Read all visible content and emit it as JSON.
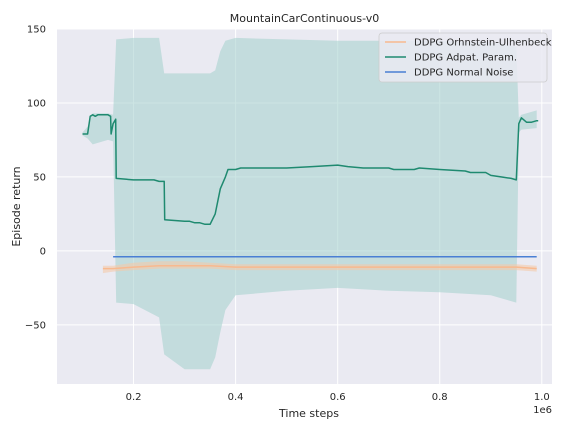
{
  "chart_data": {
    "type": "line",
    "title": "MountainCarContinuous-v0",
    "xlabel": "Time steps",
    "ylabel": "Episode return",
    "x_offset_label": "1e6",
    "xlim": [
      0.05,
      1.02
    ],
    "ylim": [
      -90,
      150
    ],
    "x_ticks": [
      0.2,
      0.4,
      0.6,
      0.8,
      1.0
    ],
    "x_tick_labels": [
      "0.2",
      "0.4",
      "0.6",
      "0.8",
      "1.0"
    ],
    "y_ticks": [
      150,
      100,
      50,
      0,
      -50
    ],
    "y_tick_labels": [
      "150",
      "100",
      "50",
      "0",
      "−50"
    ],
    "grid": true,
    "legend_position": "top-right",
    "colors": {
      "background": "#eaeaf2",
      "grid": "#ffffff",
      "ou_line": "#f8b98f",
      "ou_band": "#f4c9aa",
      "adapt_line": "#1f8a70",
      "adapt_band": "#a3cfcc",
      "normal_line": "#4a7fd4"
    },
    "series": [
      {
        "name": "DDPG Orhnstein-Ulhenbeck",
        "line": [
          [
            0.14,
            -12
          ],
          [
            0.16,
            -12
          ],
          [
            0.2,
            -11
          ],
          [
            0.25,
            -10
          ],
          [
            0.3,
            -10
          ],
          [
            0.35,
            -10
          ],
          [
            0.4,
            -11
          ],
          [
            0.5,
            -11
          ],
          [
            0.6,
            -11
          ],
          [
            0.7,
            -11
          ],
          [
            0.8,
            -11
          ],
          [
            0.9,
            -11
          ],
          [
            0.95,
            -11
          ],
          [
            0.99,
            -12
          ]
        ],
        "band_upper": [
          [
            0.14,
            -10
          ],
          [
            0.16,
            -10
          ],
          [
            0.2,
            -8
          ],
          [
            0.25,
            -7
          ],
          [
            0.3,
            -7
          ],
          [
            0.35,
            -8
          ],
          [
            0.4,
            -9
          ],
          [
            0.5,
            -9
          ],
          [
            0.6,
            -9
          ],
          [
            0.7,
            -9
          ],
          [
            0.8,
            -9
          ],
          [
            0.9,
            -9
          ],
          [
            0.95,
            -9
          ],
          [
            0.99,
            -10
          ]
        ],
        "band_lower": [
          [
            0.14,
            -15
          ],
          [
            0.16,
            -14
          ],
          [
            0.2,
            -13
          ],
          [
            0.25,
            -12
          ],
          [
            0.3,
            -12
          ],
          [
            0.35,
            -12
          ],
          [
            0.4,
            -13
          ],
          [
            0.5,
            -13
          ],
          [
            0.6,
            -13
          ],
          [
            0.7,
            -13
          ],
          [
            0.8,
            -13
          ],
          [
            0.9,
            -13
          ],
          [
            0.95,
            -13
          ],
          [
            0.99,
            -14
          ]
        ]
      },
      {
        "name": "DDPG Adpat. Param.",
        "line": [
          [
            0.1,
            79
          ],
          [
            0.11,
            79
          ],
          [
            0.115,
            91
          ],
          [
            0.12,
            92
          ],
          [
            0.125,
            91
          ],
          [
            0.13,
            92
          ],
          [
            0.15,
            92
          ],
          [
            0.155,
            91
          ],
          [
            0.156,
            79
          ],
          [
            0.16,
            86
          ],
          [
            0.165,
            89
          ],
          [
            0.166,
            49
          ],
          [
            0.2,
            48
          ],
          [
            0.21,
            48
          ],
          [
            0.24,
            48
          ],
          [
            0.25,
            47
          ],
          [
            0.26,
            47
          ],
          [
            0.261,
            21
          ],
          [
            0.3,
            20
          ],
          [
            0.31,
            20
          ],
          [
            0.32,
            19
          ],
          [
            0.33,
            19
          ],
          [
            0.34,
            18
          ],
          [
            0.35,
            18
          ],
          [
            0.36,
            25
          ],
          [
            0.37,
            42
          ],
          [
            0.38,
            50
          ],
          [
            0.385,
            55
          ],
          [
            0.4,
            55
          ],
          [
            0.41,
            56
          ],
          [
            0.5,
            56
          ],
          [
            0.55,
            57
          ],
          [
            0.6,
            58
          ],
          [
            0.62,
            57
          ],
          [
            0.65,
            56
          ],
          [
            0.7,
            56
          ],
          [
            0.71,
            55
          ],
          [
            0.75,
            55
          ],
          [
            0.76,
            56
          ],
          [
            0.8,
            55
          ],
          [
            0.85,
            54
          ],
          [
            0.86,
            53
          ],
          [
            0.89,
            53
          ],
          [
            0.9,
            51
          ],
          [
            0.92,
            50
          ],
          [
            0.94,
            49
          ],
          [
            0.95,
            48
          ],
          [
            0.955,
            86
          ],
          [
            0.96,
            90
          ],
          [
            0.97,
            87
          ],
          [
            0.98,
            87
          ],
          [
            0.99,
            88
          ],
          [
            0.993,
            88
          ]
        ],
        "band_upper": [
          [
            0.1,
            80
          ],
          [
            0.11,
            84
          ],
          [
            0.12,
            93
          ],
          [
            0.15,
            93
          ],
          [
            0.16,
            92
          ],
          [
            0.166,
            143
          ],
          [
            0.2,
            144
          ],
          [
            0.25,
            144
          ],
          [
            0.26,
            120
          ],
          [
            0.3,
            120
          ],
          [
            0.35,
            120
          ],
          [
            0.36,
            122
          ],
          [
            0.37,
            135
          ],
          [
            0.38,
            142
          ],
          [
            0.4,
            144
          ],
          [
            0.5,
            143
          ],
          [
            0.6,
            142
          ],
          [
            0.7,
            142
          ],
          [
            0.8,
            142
          ],
          [
            0.9,
            141
          ],
          [
            0.95,
            138
          ],
          [
            0.955,
            90
          ],
          [
            0.96,
            92
          ],
          [
            0.99,
            95
          ]
        ],
        "band_lower": [
          [
            0.1,
            78
          ],
          [
            0.11,
            76
          ],
          [
            0.12,
            72
          ],
          [
            0.15,
            75
          ],
          [
            0.16,
            74
          ],
          [
            0.166,
            -35
          ],
          [
            0.2,
            -36
          ],
          [
            0.25,
            -45
          ],
          [
            0.26,
            -70
          ],
          [
            0.3,
            -80
          ],
          [
            0.35,
            -80
          ],
          [
            0.36,
            -72
          ],
          [
            0.37,
            -55
          ],
          [
            0.38,
            -40
          ],
          [
            0.4,
            -30
          ],
          [
            0.5,
            -27
          ],
          [
            0.6,
            -25
          ],
          [
            0.7,
            -27
          ],
          [
            0.8,
            -28
          ],
          [
            0.9,
            -30
          ],
          [
            0.95,
            -35
          ],
          [
            0.955,
            80
          ],
          [
            0.96,
            82
          ],
          [
            0.99,
            83
          ]
        ]
      },
      {
        "name": "DDPG Normal Noise",
        "line": [
          [
            0.16,
            -4
          ],
          [
            0.99,
            -4
          ]
        ]
      }
    ]
  }
}
